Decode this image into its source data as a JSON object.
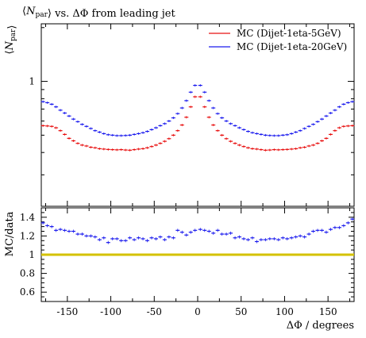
{
  "chart_data": {
    "type": "scatter",
    "title": "⟨N_par⟩ vs. ΔΦ from leading jet",
    "xlabel": "ΔΦ / degrees",
    "ylabel_main": "⟨N_par⟩",
    "ylabel_ratio": "MC/data",
    "xlim": [
      -180,
      180
    ],
    "main_yscale": "log",
    "main_ylim": [
      0.2,
      2.1
    ],
    "main_ytick_labels": [
      "1"
    ],
    "main_yticks": [
      1
    ],
    "ratio_ylim": [
      0.5,
      1.5
    ],
    "ratio_yticks": [
      0.6,
      0.8,
      1,
      1.2,
      1.4
    ],
    "ratio_ytick_labels": [
      "0.6",
      "0.8",
      "1",
      "1.2",
      "1.4"
    ],
    "xticks": [
      -150,
      -100,
      -50,
      0,
      50,
      100,
      150
    ],
    "xtick_labels": [
      "-150",
      "-100",
      "-50",
      "0",
      "50",
      "100",
      "150"
    ],
    "legend_position": "top-right",
    "reference_line": {
      "y": 1,
      "color": "#d4c200"
    },
    "series": [
      {
        "name": "MC (Dijet-1eta-5GeV)",
        "color": "#e81010",
        "points": [
          [
            -178,
            0.565
          ],
          [
            -173,
            0.563
          ],
          [
            -168,
            0.56
          ],
          [
            -163,
            0.55
          ],
          [
            -158,
            0.53
          ],
          [
            -153,
            0.505
          ],
          [
            -148,
            0.48
          ],
          [
            -143,
            0.465
          ],
          [
            -138,
            0.45
          ],
          [
            -133,
            0.44
          ],
          [
            -128,
            0.435
          ],
          [
            -123,
            0.428
          ],
          [
            -118,
            0.425
          ],
          [
            -113,
            0.42
          ],
          [
            -108,
            0.418
          ],
          [
            -103,
            0.416
          ],
          [
            -98,
            0.415
          ],
          [
            -93,
            0.414
          ],
          [
            -88,
            0.415
          ],
          [
            -83,
            0.413
          ],
          [
            -78,
            0.412
          ],
          [
            -73,
            0.415
          ],
          [
            -68,
            0.418
          ],
          [
            -63,
            0.42
          ],
          [
            -58,
            0.425
          ],
          [
            -53,
            0.432
          ],
          [
            -48,
            0.44
          ],
          [
            -43,
            0.45
          ],
          [
            -38,
            0.462
          ],
          [
            -33,
            0.478
          ],
          [
            -28,
            0.5
          ],
          [
            -23,
            0.53
          ],
          [
            -18,
            0.57
          ],
          [
            -13,
            0.63
          ],
          [
            -8,
            0.72
          ],
          [
            -3,
            0.82
          ],
          [
            3,
            0.82
          ],
          [
            8,
            0.72
          ],
          [
            13,
            0.63
          ],
          [
            18,
            0.57
          ],
          [
            23,
            0.53
          ],
          [
            28,
            0.5
          ],
          [
            33,
            0.478
          ],
          [
            38,
            0.462
          ],
          [
            43,
            0.45
          ],
          [
            48,
            0.44
          ],
          [
            53,
            0.432
          ],
          [
            58,
            0.425
          ],
          [
            63,
            0.42
          ],
          [
            68,
            0.418
          ],
          [
            73,
            0.415
          ],
          [
            78,
            0.412
          ],
          [
            83,
            0.413
          ],
          [
            88,
            0.415
          ],
          [
            93,
            0.414
          ],
          [
            98,
            0.415
          ],
          [
            103,
            0.416
          ],
          [
            108,
            0.418
          ],
          [
            113,
            0.42
          ],
          [
            118,
            0.425
          ],
          [
            123,
            0.428
          ],
          [
            128,
            0.435
          ],
          [
            133,
            0.44
          ],
          [
            138,
            0.45
          ],
          [
            143,
            0.465
          ],
          [
            148,
            0.48
          ],
          [
            153,
            0.505
          ],
          [
            158,
            0.53
          ],
          [
            163,
            0.55
          ],
          [
            168,
            0.56
          ],
          [
            173,
            0.563
          ],
          [
            178,
            0.565
          ]
        ]
      },
      {
        "name": "MC (Dijet-1eta-20GeV)",
        "color": "#1a1aee",
        "points": [
          [
            -178,
            0.77
          ],
          [
            -173,
            0.76
          ],
          [
            -168,
            0.745
          ],
          [
            -163,
            0.72
          ],
          [
            -158,
            0.69
          ],
          [
            -153,
            0.665
          ],
          [
            -148,
            0.64
          ],
          [
            -143,
            0.615
          ],
          [
            -138,
            0.595
          ],
          [
            -133,
            0.575
          ],
          [
            -128,
            0.56
          ],
          [
            -123,
            0.545
          ],
          [
            -118,
            0.53
          ],
          [
            -113,
            0.52
          ],
          [
            -108,
            0.51
          ],
          [
            -103,
            0.503
          ],
          [
            -98,
            0.5
          ],
          [
            -93,
            0.497
          ],
          [
            -88,
            0.497
          ],
          [
            -83,
            0.498
          ],
          [
            -78,
            0.5
          ],
          [
            -73,
            0.505
          ],
          [
            -68,
            0.51
          ],
          [
            -63,
            0.516
          ],
          [
            -58,
            0.525
          ],
          [
            -53,
            0.537
          ],
          [
            -48,
            0.55
          ],
          [
            -43,
            0.565
          ],
          [
            -38,
            0.58
          ],
          [
            -33,
            0.6
          ],
          [
            -28,
            0.625
          ],
          [
            -23,
            0.66
          ],
          [
            -18,
            0.71
          ],
          [
            -13,
            0.78
          ],
          [
            -8,
            0.87
          ],
          [
            -3,
            0.95
          ],
          [
            3,
            0.95
          ],
          [
            8,
            0.87
          ],
          [
            13,
            0.78
          ],
          [
            18,
            0.71
          ],
          [
            23,
            0.66
          ],
          [
            28,
            0.625
          ],
          [
            33,
            0.6
          ],
          [
            38,
            0.58
          ],
          [
            43,
            0.565
          ],
          [
            48,
            0.55
          ],
          [
            53,
            0.537
          ],
          [
            58,
            0.525
          ],
          [
            63,
            0.516
          ],
          [
            68,
            0.51
          ],
          [
            73,
            0.505
          ],
          [
            78,
            0.5
          ],
          [
            83,
            0.498
          ],
          [
            88,
            0.497
          ],
          [
            93,
            0.497
          ],
          [
            98,
            0.5
          ],
          [
            103,
            0.503
          ],
          [
            108,
            0.51
          ],
          [
            113,
            0.52
          ],
          [
            118,
            0.53
          ],
          [
            123,
            0.545
          ],
          [
            128,
            0.56
          ],
          [
            133,
            0.575
          ],
          [
            138,
            0.595
          ],
          [
            143,
            0.615
          ],
          [
            148,
            0.64
          ],
          [
            153,
            0.665
          ],
          [
            158,
            0.69
          ],
          [
            163,
            0.72
          ],
          [
            168,
            0.745
          ],
          [
            173,
            0.76
          ],
          [
            178,
            0.77
          ]
        ],
        "ratio": [
          [
            -178,
            1.34
          ],
          [
            -173,
            1.31
          ],
          [
            -168,
            1.3
          ],
          [
            -163,
            1.26
          ],
          [
            -158,
            1.27
          ],
          [
            -153,
            1.26
          ],
          [
            -148,
            1.25
          ],
          [
            -143,
            1.25
          ],
          [
            -138,
            1.22
          ],
          [
            -133,
            1.22
          ],
          [
            -128,
            1.2
          ],
          [
            -123,
            1.2
          ],
          [
            -118,
            1.19
          ],
          [
            -113,
            1.16
          ],
          [
            -108,
            1.18
          ],
          [
            -103,
            1.13
          ],
          [
            -98,
            1.17
          ],
          [
            -93,
            1.17
          ],
          [
            -88,
            1.15
          ],
          [
            -83,
            1.15
          ],
          [
            -78,
            1.18
          ],
          [
            -73,
            1.16
          ],
          [
            -68,
            1.18
          ],
          [
            -63,
            1.17
          ],
          [
            -58,
            1.15
          ],
          [
            -53,
            1.18
          ],
          [
            -48,
            1.17
          ],
          [
            -43,
            1.19
          ],
          [
            -38,
            1.16
          ],
          [
            -33,
            1.19
          ],
          [
            -28,
            1.18
          ],
          [
            -23,
            1.26
          ],
          [
            -18,
            1.24
          ],
          [
            -13,
            1.21
          ],
          [
            -8,
            1.24
          ],
          [
            -3,
            1.26
          ],
          [
            3,
            1.27
          ],
          [
            8,
            1.26
          ],
          [
            13,
            1.25
          ],
          [
            18,
            1.23
          ],
          [
            23,
            1.26
          ],
          [
            28,
            1.22
          ],
          [
            33,
            1.22
          ],
          [
            38,
            1.23
          ],
          [
            43,
            1.18
          ],
          [
            48,
            1.19
          ],
          [
            53,
            1.17
          ],
          [
            58,
            1.16
          ],
          [
            63,
            1.18
          ],
          [
            68,
            1.14
          ],
          [
            73,
            1.16
          ],
          [
            78,
            1.16
          ],
          [
            83,
            1.17
          ],
          [
            88,
            1.17
          ],
          [
            93,
            1.16
          ],
          [
            98,
            1.18
          ],
          [
            103,
            1.17
          ],
          [
            108,
            1.18
          ],
          [
            113,
            1.19
          ],
          [
            118,
            1.2
          ],
          [
            123,
            1.19
          ],
          [
            128,
            1.22
          ],
          [
            133,
            1.25
          ],
          [
            138,
            1.26
          ],
          [
            143,
            1.26
          ],
          [
            148,
            1.24
          ],
          [
            153,
            1.27
          ],
          [
            158,
            1.29
          ],
          [
            163,
            1.29
          ],
          [
            168,
            1.31
          ],
          [
            173,
            1.34
          ],
          [
            178,
            1.38
          ]
        ]
      }
    ]
  }
}
